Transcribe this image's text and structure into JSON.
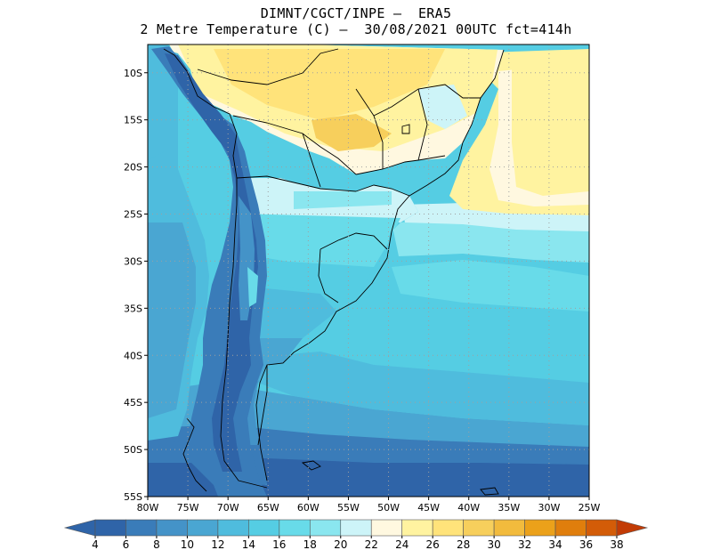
{
  "title_line1": "DIMNT/CGCT/INPE –  ERA5",
  "title_line2": "2 Metre Temperature (C) –  30/08/2021 00UTC fct=414h",
  "map": {
    "lon_range": [
      -80,
      -25
    ],
    "lat_range": [
      -55,
      -7
    ],
    "lat_ticks": [
      {
        "value": -10,
        "label": "10S"
      },
      {
        "value": -15,
        "label": "15S"
      },
      {
        "value": -20,
        "label": "20S"
      },
      {
        "value": -25,
        "label": "25S"
      },
      {
        "value": -30,
        "label": "30S"
      },
      {
        "value": -35,
        "label": "35S"
      },
      {
        "value": -40,
        "label": "40S"
      },
      {
        "value": -45,
        "label": "45S"
      },
      {
        "value": -50,
        "label": "50S"
      },
      {
        "value": -55,
        "label": "55S"
      }
    ],
    "lon_ticks": [
      {
        "value": -80,
        "label": "80W"
      },
      {
        "value": -75,
        "label": "75W"
      },
      {
        "value": -70,
        "label": "70W"
      },
      {
        "value": -65,
        "label": "65W"
      },
      {
        "value": -60,
        "label": "60W"
      },
      {
        "value": -55,
        "label": "55W"
      },
      {
        "value": -50,
        "label": "50W"
      },
      {
        "value": -45,
        "label": "45W"
      },
      {
        "value": -40,
        "label": "40W"
      },
      {
        "value": -35,
        "label": "35W"
      },
      {
        "value": -30,
        "label": "30W"
      },
      {
        "value": -25,
        "label": "25W"
      }
    ],
    "grid": "dotted"
  },
  "colorbar": {
    "labels": [
      "4",
      "6",
      "8",
      "10",
      "12",
      "14",
      "16",
      "18",
      "20",
      "22",
      "24",
      "26",
      "28",
      "30",
      "32",
      "34",
      "36",
      "38"
    ],
    "colors": [
      "#2f64a8",
      "#3a7cb9",
      "#4493c8",
      "#4aa6d2",
      "#4fbcdd",
      "#55cde3",
      "#68dbe9",
      "#8ae6ef",
      "#cdf4f8",
      "#fff8e0",
      "#fff3a0",
      "#ffe37a",
      "#f7cf5c",
      "#f2bb3d",
      "#eba11a",
      "#e07e0c",
      "#d35c08",
      "#c23b05"
    ]
  }
}
